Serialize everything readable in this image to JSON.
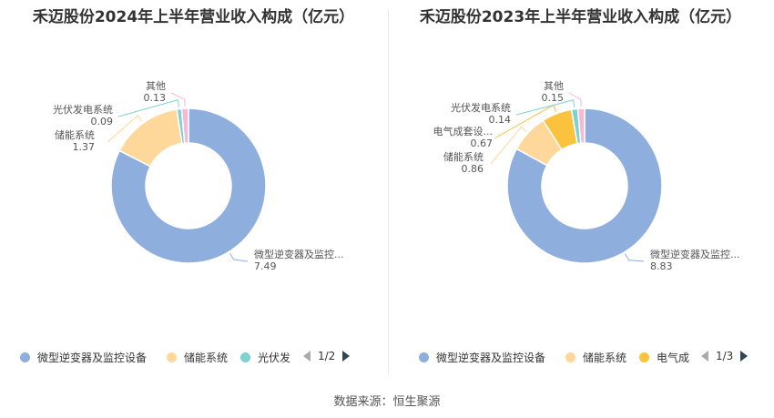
{
  "source": "数据来源：恒生聚源",
  "chart_data": [
    {
      "type": "pie",
      "title": "禾迈股份2024年上半年营业收入构成（亿元）",
      "slices": [
        {
          "name": "微型逆变器及监控设备",
          "label": "微型逆变器及监控...",
          "value": 7.49,
          "value_label": "7.49",
          "color": "#8eaedd"
        },
        {
          "name": "储能系统",
          "label": "储能系统",
          "value": 1.37,
          "value_label": "1.37",
          "color": "#fdd89a"
        },
        {
          "name": "光伏发电系统",
          "label": "光伏发电系统",
          "value": 0.09,
          "value_label": "0.09",
          "color": "#7fd1d1"
        },
        {
          "name": "其他",
          "label": "其他",
          "value": 0.13,
          "value_label": "0.13",
          "color": "#f4b9d6"
        }
      ],
      "legend": {
        "position": "bottom",
        "items": [
          "微型逆变器及监控设备",
          "储能系统",
          "光伏发"
        ],
        "page": "1/2"
      }
    },
    {
      "type": "pie",
      "title": "禾迈股份2023年上半年营业收入构成（亿元）",
      "slices": [
        {
          "name": "微型逆变器及监控设备",
          "label": "微型逆变器及监控...",
          "value": 8.83,
          "value_label": "8.83",
          "color": "#8eaedd"
        },
        {
          "name": "储能系统",
          "label": "储能系统",
          "value": 0.86,
          "value_label": "0.86",
          "color": "#fdd89a"
        },
        {
          "name": "电气成套设备",
          "label": "电气成套设...",
          "value": 0.67,
          "value_label": "0.67",
          "color": "#fbc23e"
        },
        {
          "name": "光伏发电系统",
          "label": "光伏发电系统",
          "value": 0.14,
          "value_label": "0.14",
          "color": "#7fd1d1"
        },
        {
          "name": "其他",
          "label": "其他",
          "value": 0.15,
          "value_label": "0.15",
          "color": "#f4b9d6"
        }
      ],
      "legend": {
        "position": "bottom",
        "items": [
          "微型逆变器及监控设备",
          "储能系统",
          "电气成"
        ],
        "page": "1/3"
      }
    }
  ]
}
